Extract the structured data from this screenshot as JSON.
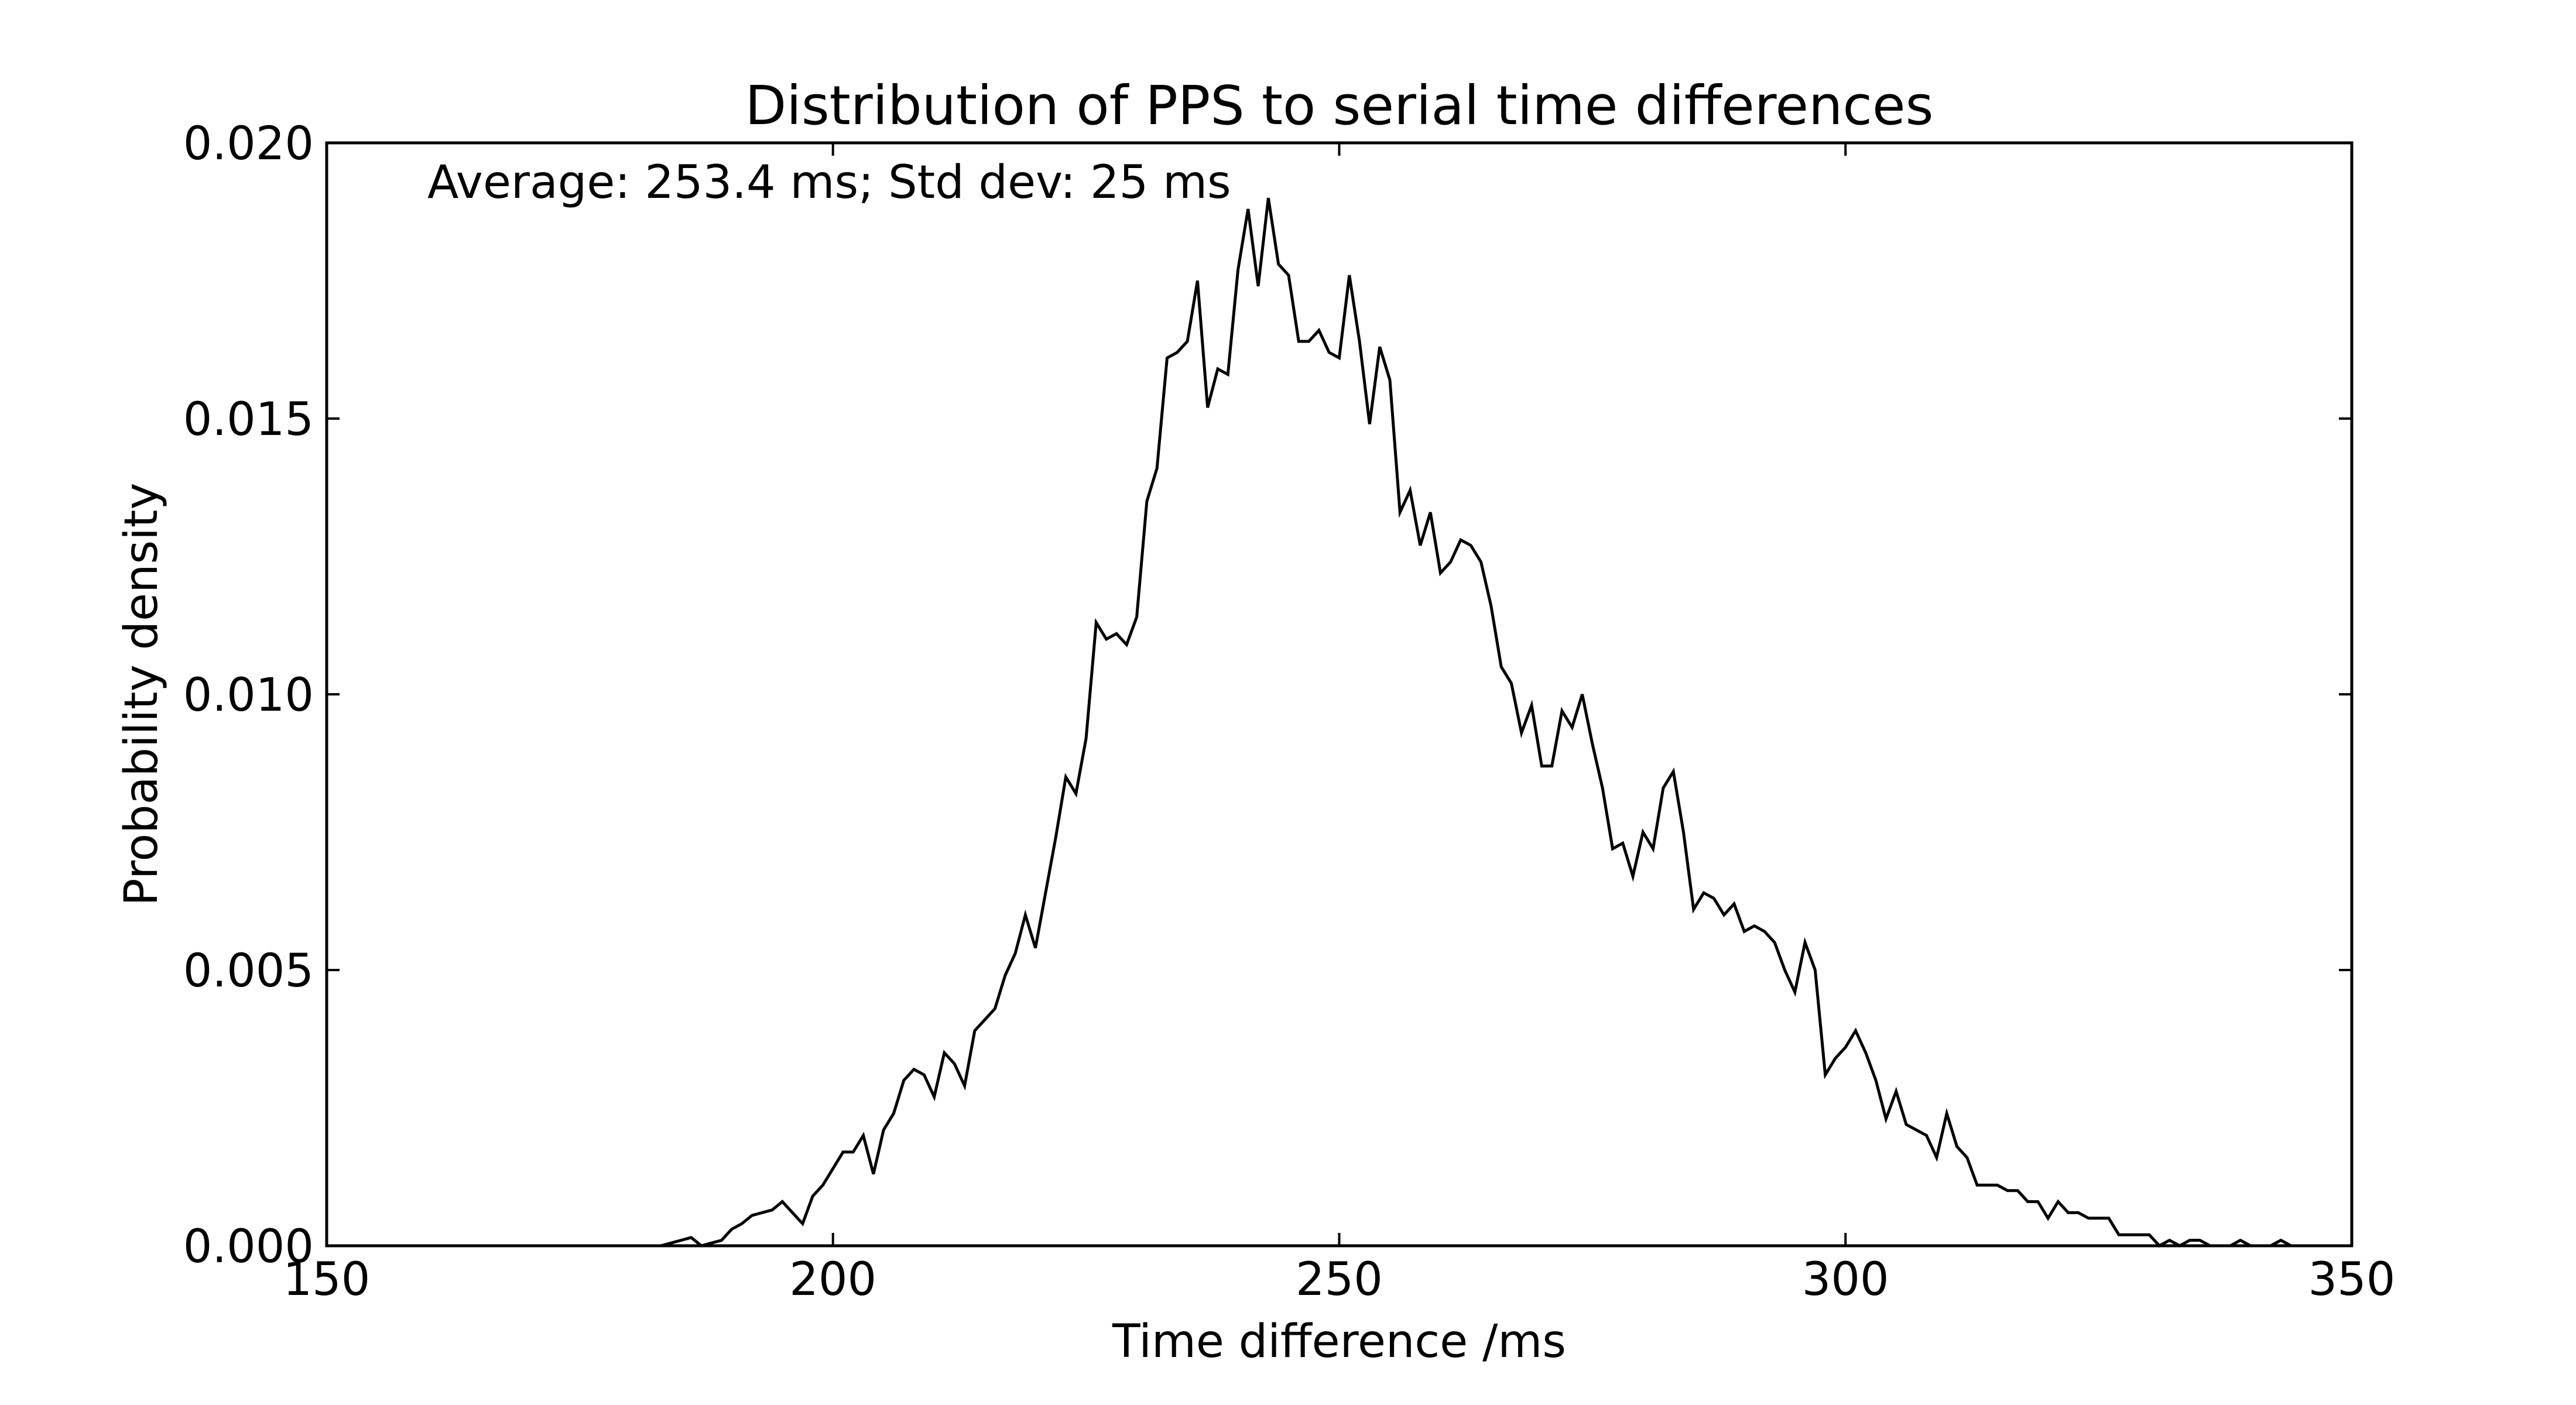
{
  "chart_data": {
    "type": "line",
    "title": "Distribution of PPS to serial time differences",
    "xlabel": "Time difference /ms",
    "ylabel": "Probability density",
    "annotation": "Average: 253.4 ms;  Std dev: 25 ms",
    "xlim": [
      150,
      350
    ],
    "ylim": [
      0,
      0.02
    ],
    "xticks": [
      150,
      200,
      250,
      300,
      350
    ],
    "xtick_labels": [
      "150",
      "200",
      "250",
      "300",
      "350"
    ],
    "yticks": [
      0,
      0.005,
      0.01,
      0.015,
      0.02
    ],
    "ytick_labels": [
      "0.000",
      "0.005",
      "0.010",
      "0.015",
      "0.020"
    ],
    "grid": false,
    "line_color": "#000000",
    "series": [
      {
        "x": [
          181,
          182,
          183,
          184,
          185,
          186,
          187,
          188,
          189,
          190,
          191,
          192,
          193,
          194,
          195,
          196,
          197,
          198,
          199,
          200,
          201,
          202,
          203,
          204,
          205,
          206,
          207,
          208,
          209,
          210,
          211,
          212,
          213,
          214,
          215,
          216,
          217,
          218,
          219,
          220,
          221,
          222,
          223,
          224,
          225,
          226,
          227,
          228,
          229,
          230,
          231,
          232,
          233,
          234,
          235,
          236,
          237,
          238,
          239,
          240,
          241,
          242,
          243,
          244,
          245,
          246,
          247,
          248,
          249,
          250,
          251,
          252,
          253,
          254,
          255,
          256,
          257,
          258,
          259,
          260,
          261,
          262,
          263,
          264,
          265,
          266,
          267,
          268,
          269,
          270,
          271,
          272,
          273,
          274,
          275,
          276,
          277,
          278,
          279,
          280,
          281,
          282,
          283,
          284,
          285,
          286,
          287,
          288,
          289,
          290,
          291,
          292,
          293,
          294,
          295,
          296,
          297,
          298,
          299,
          300,
          301,
          302,
          303,
          304,
          305,
          306,
          307,
          308,
          309,
          310,
          311,
          312,
          313,
          314,
          315,
          316,
          317,
          318,
          319,
          320,
          321,
          322,
          323,
          324,
          325,
          326,
          327,
          328,
          329,
          330,
          331,
          332,
          333,
          334,
          335,
          336,
          337,
          338,
          339,
          340,
          341,
          342,
          343,
          344
        ],
        "y": [
          0,
          0,
          0,
          5e-05,
          0.0001,
          0.00015,
          0,
          5e-05,
          0.0001,
          0.0003,
          0.0004,
          0.00055,
          0.0006,
          0.00065,
          0.0008,
          0.0006,
          0.0004,
          0.0009,
          0.0011,
          0.0014,
          0.0017,
          0.0017,
          0.002,
          0.0013,
          0.0021,
          0.0024,
          0.003,
          0.0032,
          0.0031,
          0.0027,
          0.0035,
          0.0033,
          0.0029,
          0.0039,
          0.0041,
          0.0043,
          0.0049,
          0.0053,
          0.006,
          0.0054,
          0.0064,
          0.0074,
          0.0085,
          0.0082,
          0.0092,
          0.0113,
          0.011,
          0.0111,
          0.0109,
          0.0114,
          0.0135,
          0.0141,
          0.0161,
          0.0162,
          0.0164,
          0.0175,
          0.0152,
          0.0159,
          0.0158,
          0.0177,
          0.0188,
          0.0174,
          0.019,
          0.0178,
          0.0176,
          0.0164,
          0.0164,
          0.0166,
          0.0162,
          0.0161,
          0.0176,
          0.0164,
          0.0149,
          0.0163,
          0.0157,
          0.0133,
          0.0137,
          0.0127,
          0.0133,
          0.0122,
          0.0124,
          0.0128,
          0.0127,
          0.0124,
          0.0116,
          0.0105,
          0.0102,
          0.0093,
          0.0098,
          0.0087,
          0.0087,
          0.0097,
          0.0094,
          0.01,
          0.0091,
          0.0083,
          0.0072,
          0.0073,
          0.0067,
          0.0075,
          0.0072,
          0.0083,
          0.0086,
          0.0075,
          0.0061,
          0.0064,
          0.0063,
          0.006,
          0.0062,
          0.0057,
          0.0058,
          0.0057,
          0.0055,
          0.005,
          0.0046,
          0.0055,
          0.005,
          0.0031,
          0.0034,
          0.0036,
          0.0039,
          0.0035,
          0.003,
          0.0023,
          0.0028,
          0.0022,
          0.0021,
          0.002,
          0.0016,
          0.0024,
          0.0018,
          0.0016,
          0.0011,
          0.0011,
          0.0011,
          0.001,
          0.001,
          0.0008,
          0.0008,
          0.0005,
          0.0008,
          0.0006,
          0.0006,
          0.0005,
          0.0005,
          0.0005,
          0.0002,
          0.0002,
          0.0002,
          0.0002,
          0,
          0.0001,
          0,
          0.0001,
          0.0001,
          0,
          0,
          0,
          0.0001,
          0,
          0,
          0,
          0.0001,
          0
        ]
      }
    ]
  }
}
